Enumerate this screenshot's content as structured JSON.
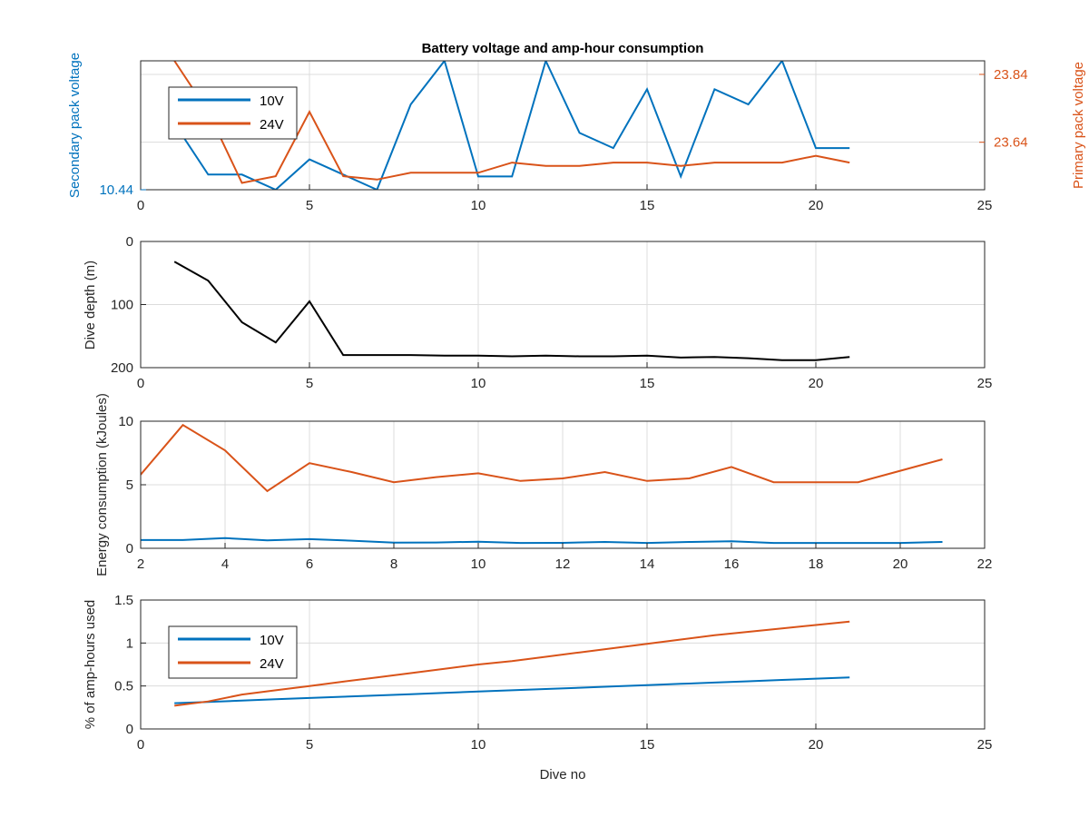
{
  "colors": {
    "v10": "#0072BD",
    "v24": "#D95319",
    "depth": "#000000",
    "axis": "#262626"
  },
  "chart_data": [
    {
      "type": "line",
      "title": "Battery voltage and amp-hour consumption",
      "xlim": [
        0,
        25
      ],
      "xticks": [
        "0",
        "5",
        "10",
        "15",
        "20",
        "25"
      ],
      "left_axis": {
        "label": "Secondary pack voltage",
        "ticks": [
          "10.44"
        ],
        "color": "#0072BD"
      },
      "right_axis": {
        "label": "Primary pack voltage",
        "ticks": [
          "23.84",
          "23.64"
        ],
        "color": "#D95319"
      },
      "legend": {
        "position": "top-left",
        "entries": [
          "10V",
          "24V"
        ]
      },
      "grid": true,
      "series": [
        {
          "name": "10V",
          "axis": "left",
          "x": [
            1,
            2,
            3,
            4,
            5,
            6,
            7,
            8,
            9,
            10,
            11,
            12,
            13,
            14,
            15,
            16,
            17,
            18,
            19,
            20,
            21
          ],
          "y": [
            10.475,
            10.448,
            10.448,
            10.44,
            10.456,
            10.448,
            10.44,
            10.485,
            10.508,
            10.447,
            10.447,
            10.508,
            10.47,
            10.462,
            10.493,
            10.447,
            10.493,
            10.485,
            10.508,
            10.462,
            10.462
          ]
        },
        {
          "name": "24V",
          "axis": "right",
          "x": [
            1,
            2,
            3,
            4,
            5,
            6,
            7,
            8,
            9,
            10,
            11,
            12,
            13,
            14,
            15,
            16,
            17,
            18,
            19,
            20,
            21
          ],
          "y": [
            23.88,
            23.73,
            23.52,
            23.54,
            23.73,
            23.54,
            23.53,
            23.55,
            23.55,
            23.55,
            23.58,
            23.57,
            23.57,
            23.58,
            23.58,
            23.57,
            23.58,
            23.58,
            23.58,
            23.6,
            23.58
          ]
        }
      ]
    },
    {
      "type": "line",
      "xlim": [
        0,
        25
      ],
      "ylim": [
        0,
        200
      ],
      "y_reversed": true,
      "xticks": [
        "0",
        "5",
        "10",
        "15",
        "20",
        "25"
      ],
      "yticks": [
        "0",
        "100",
        "200"
      ],
      "ylabel": "Dive depth (m)",
      "grid": true,
      "series": [
        {
          "x": [
            1,
            2,
            3,
            4,
            5,
            6,
            7,
            8,
            9,
            10,
            11,
            12,
            13,
            14,
            15,
            16,
            17,
            18,
            19,
            20,
            21
          ],
          "y": [
            32,
            62,
            128,
            160,
            95,
            180,
            180,
            180,
            181,
            181,
            182,
            181,
            182,
            182,
            181,
            184,
            183,
            185,
            188,
            188,
            183
          ]
        }
      ]
    },
    {
      "type": "line",
      "xlim": [
        2,
        22
      ],
      "ylim": [
        0,
        10
      ],
      "xticks": [
        "2",
        "4",
        "6",
        "8",
        "10",
        "12",
        "14",
        "16",
        "18",
        "20",
        "22"
      ],
      "yticks": [
        "0",
        "5",
        "10"
      ],
      "ylabel": "Energy consumption (kJoules)",
      "grid": true,
      "series": [
        {
          "x": [
            2,
            3,
            4,
            5,
            6,
            7,
            8,
            9,
            10,
            11,
            12,
            13,
            14,
            15,
            16,
            17,
            18,
            19,
            20,
            21
          ],
          "y": [
            5.8,
            9.7,
            7.7,
            4.5,
            6.7,
            6.0,
            5.2,
            5.6,
            5.9,
            5.3,
            5.5,
            6.0,
            5.3,
            5.5,
            6.4,
            5.2,
            5.2,
            5.2,
            6.1,
            7.0
          ]
        },
        {
          "x": [
            2,
            3,
            4,
            5,
            6,
            7,
            8,
            9,
            10,
            11,
            12,
            13,
            14,
            15,
            16,
            17,
            18,
            19,
            20,
            21
          ],
          "y": [
            0.65,
            0.65,
            0.8,
            0.62,
            0.72,
            0.6,
            0.45,
            0.46,
            0.52,
            0.42,
            0.43,
            0.5,
            0.42,
            0.5,
            0.55,
            0.42,
            0.42,
            0.42,
            0.42,
            0.5
          ]
        }
      ]
    },
    {
      "type": "line",
      "xlim": [
        0,
        25
      ],
      "ylim": [
        0,
        1.5
      ],
      "xticks": [
        "0",
        "5",
        "10",
        "15",
        "20",
        "25"
      ],
      "yticks": [
        "0",
        "0.5",
        "1",
        "1.5"
      ],
      "xlabel": "Dive no",
      "ylabel": "% of amp-hours used",
      "legend": {
        "position": "top-left",
        "entries": [
          "10V",
          "24V"
        ]
      },
      "grid": true,
      "series": [
        {
          "name": "10V",
          "x": [
            1,
            2,
            3,
            4,
            5,
            6,
            7,
            8,
            9,
            10,
            11,
            12,
            13,
            14,
            15,
            16,
            17,
            18,
            19,
            20,
            21
          ],
          "y": [
            0.3,
            0.315,
            0.33,
            0.345,
            0.36,
            0.375,
            0.39,
            0.405,
            0.42,
            0.435,
            0.45,
            0.465,
            0.48,
            0.495,
            0.51,
            0.525,
            0.54,
            0.555,
            0.57,
            0.585,
            0.6
          ]
        },
        {
          "name": "24V",
          "x": [
            1,
            2,
            3,
            4,
            5,
            6,
            7,
            8,
            9,
            10,
            11,
            12,
            13,
            14,
            15,
            16,
            17,
            18,
            19,
            20,
            21
          ],
          "y": [
            0.27,
            0.32,
            0.4,
            0.45,
            0.5,
            0.55,
            0.6,
            0.65,
            0.7,
            0.75,
            0.79,
            0.84,
            0.89,
            0.94,
            0.99,
            1.04,
            1.09,
            1.13,
            1.17,
            1.21,
            1.25
          ]
        }
      ]
    }
  ]
}
